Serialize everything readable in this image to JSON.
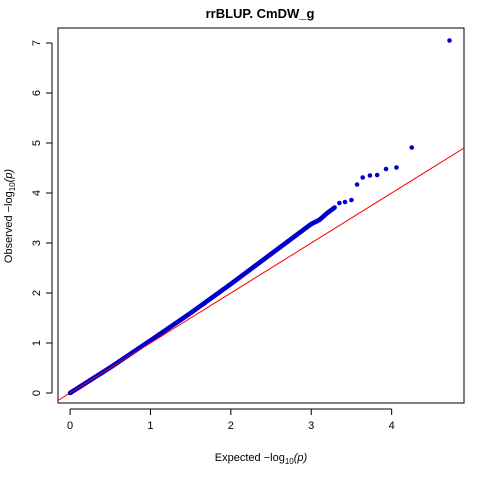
{
  "chart_data": {
    "type": "scatter",
    "title": "rrBLUP. CmDW_g",
    "xlabel": {
      "main": "Expected  −log",
      "sub": "10",
      "tail": "(p)"
    },
    "ylabel": {
      "main": "Observed  −log",
      "sub": "10",
      "tail": "(p)"
    },
    "xlim": [
      -0.15,
      4.9
    ],
    "ylim": [
      -0.2,
      7.3
    ],
    "x_ticks": [
      0,
      1,
      2,
      3,
      4
    ],
    "y_ticks": [
      0,
      1,
      2,
      3,
      4,
      5,
      6,
      7
    ],
    "grid": false,
    "legend": "none",
    "point_color": "#0000cc",
    "line_color": "#ff0000",
    "reference_line": {
      "slope": 1,
      "intercept": 0
    },
    "curve": [
      [
        0,
        0
      ],
      [
        0.5,
        0.51
      ],
      [
        1.0,
        1.05
      ],
      [
        1.5,
        1.6
      ],
      [
        2.0,
        2.18
      ],
      [
        2.5,
        2.78
      ],
      [
        3.0,
        3.38
      ],
      [
        3.1,
        3.46
      ],
      [
        3.2,
        3.6
      ],
      [
        3.3,
        3.72
      ]
    ],
    "points": [
      {
        "x": 3.35,
        "y": 3.8
      },
      {
        "x": 3.42,
        "y": 3.82
      },
      {
        "x": 3.5,
        "y": 3.86
      },
      {
        "x": 3.57,
        "y": 4.17
      },
      {
        "x": 3.64,
        "y": 4.31
      },
      {
        "x": 3.73,
        "y": 4.35
      },
      {
        "x": 3.82,
        "y": 4.36
      },
      {
        "x": 3.93,
        "y": 4.48
      },
      {
        "x": 4.06,
        "y": 4.51
      },
      {
        "x": 4.25,
        "y": 4.91
      },
      {
        "x": 4.72,
        "y": 7.05
      }
    ]
  }
}
